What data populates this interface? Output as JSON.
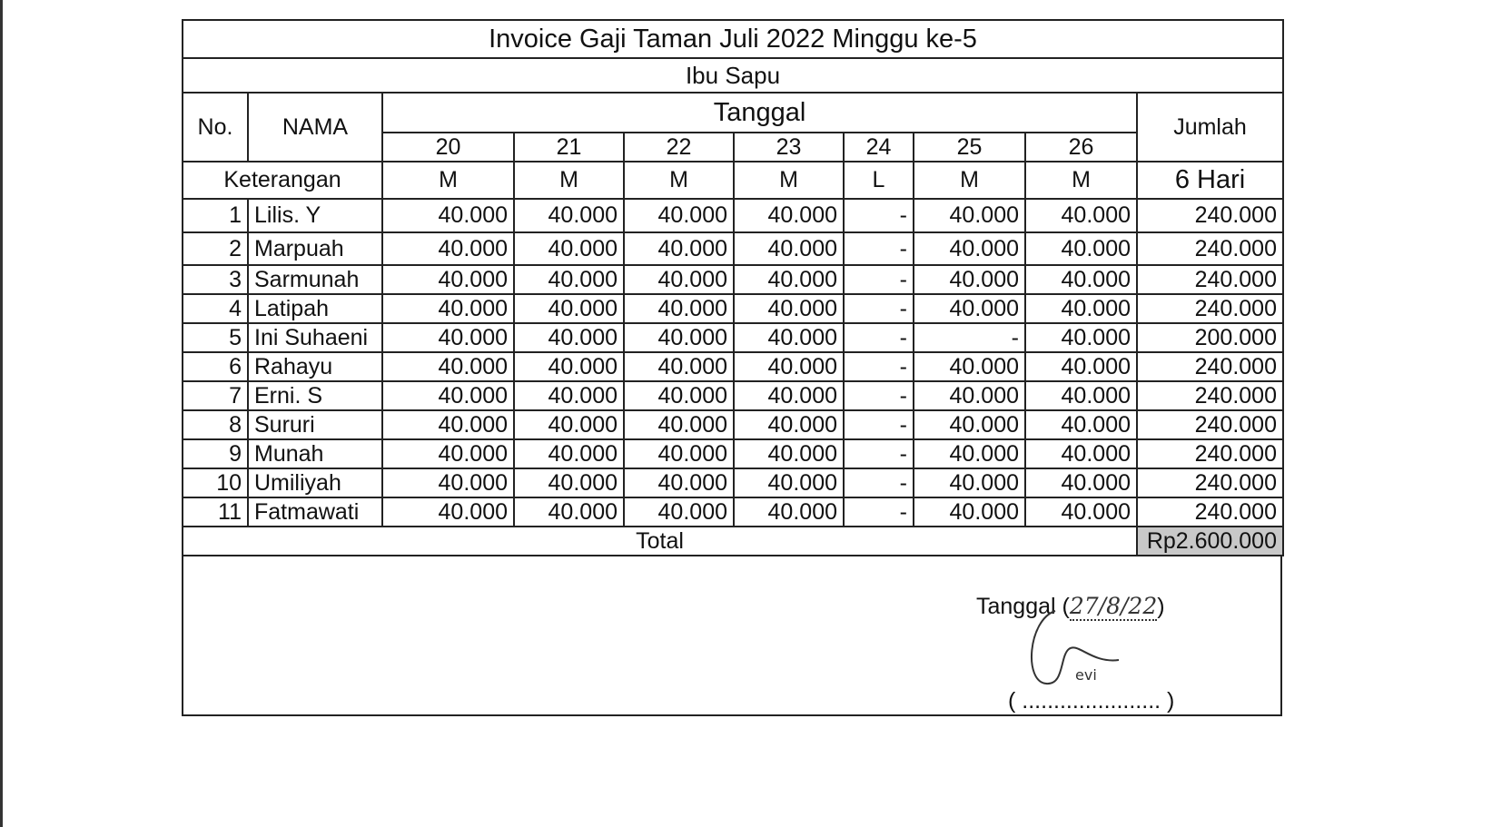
{
  "title": "Invoice Gaji Taman Juli 2022 Minggu ke-5",
  "subtitle": "Ibu Sapu",
  "headers": {
    "no": "No.",
    "nama": "NAMA",
    "tanggal": "Tanggal",
    "jumlah": "Jumlah",
    "keterangan": "Keterangan",
    "dates": [
      "20",
      "21",
      "22",
      "23",
      "24",
      "25",
      "26"
    ],
    "codes": [
      "M",
      "M",
      "M",
      "M",
      "L",
      "M",
      "M"
    ],
    "days": "6 Hari"
  },
  "rows": [
    {
      "no": "1",
      "name": "Lilis. Y",
      "v": [
        "40.000",
        "40.000",
        "40.000",
        "40.000",
        "-",
        "40.000",
        "40.000"
      ],
      "total": "240.000"
    },
    {
      "no": "2",
      "name": "Marpuah",
      "v": [
        "40.000",
        "40.000",
        "40.000",
        "40.000",
        "-",
        "40.000",
        "40.000"
      ],
      "total": "240.000"
    },
    {
      "no": "3",
      "name": "Sarmunah",
      "v": [
        "40.000",
        "40.000",
        "40.000",
        "40.000",
        "-",
        "40.000",
        "40.000"
      ],
      "total": "240.000"
    },
    {
      "no": "4",
      "name": "Latipah",
      "v": [
        "40.000",
        "40.000",
        "40.000",
        "40.000",
        "-",
        "40.000",
        "40.000"
      ],
      "total": "240.000"
    },
    {
      "no": "5",
      "name": "Ini Suhaeni",
      "v": [
        "40.000",
        "40.000",
        "40.000",
        "40.000",
        "-",
        "-",
        "40.000"
      ],
      "total": "200.000"
    },
    {
      "no": "6",
      "name": "Rahayu",
      "v": [
        "40.000",
        "40.000",
        "40.000",
        "40.000",
        "-",
        "40.000",
        "40.000"
      ],
      "total": "240.000"
    },
    {
      "no": "7",
      "name": "Erni. S",
      "v": [
        "40.000",
        "40.000",
        "40.000",
        "40.000",
        "-",
        "40.000",
        "40.000"
      ],
      "total": "240.000"
    },
    {
      "no": "8",
      "name": "Sururi",
      "v": [
        "40.000",
        "40.000",
        "40.000",
        "40.000",
        "-",
        "40.000",
        "40.000"
      ],
      "total": "240.000"
    },
    {
      "no": "9",
      "name": "Munah",
      "v": [
        "40.000",
        "40.000",
        "40.000",
        "40.000",
        "-",
        "40.000",
        "40.000"
      ],
      "total": "240.000"
    },
    {
      "no": "10",
      "name": "Umiliyah",
      "v": [
        "40.000",
        "40.000",
        "40.000",
        "40.000",
        "-",
        "40.000",
        "40.000"
      ],
      "total": "240.000"
    },
    {
      "no": "11",
      "name": "Fatmawati",
      "v": [
        "40.000",
        "40.000",
        "40.000",
        "40.000",
        "-",
        "40.000",
        "40.000"
      ],
      "total": "240.000"
    }
  ],
  "total": {
    "label": "Total",
    "value": "Rp2.600.000"
  },
  "signature": {
    "date_label": "Tanggal",
    "date_handwritten": "27/8/22",
    "name_handwritten": "evi",
    "dots": "......................"
  }
}
